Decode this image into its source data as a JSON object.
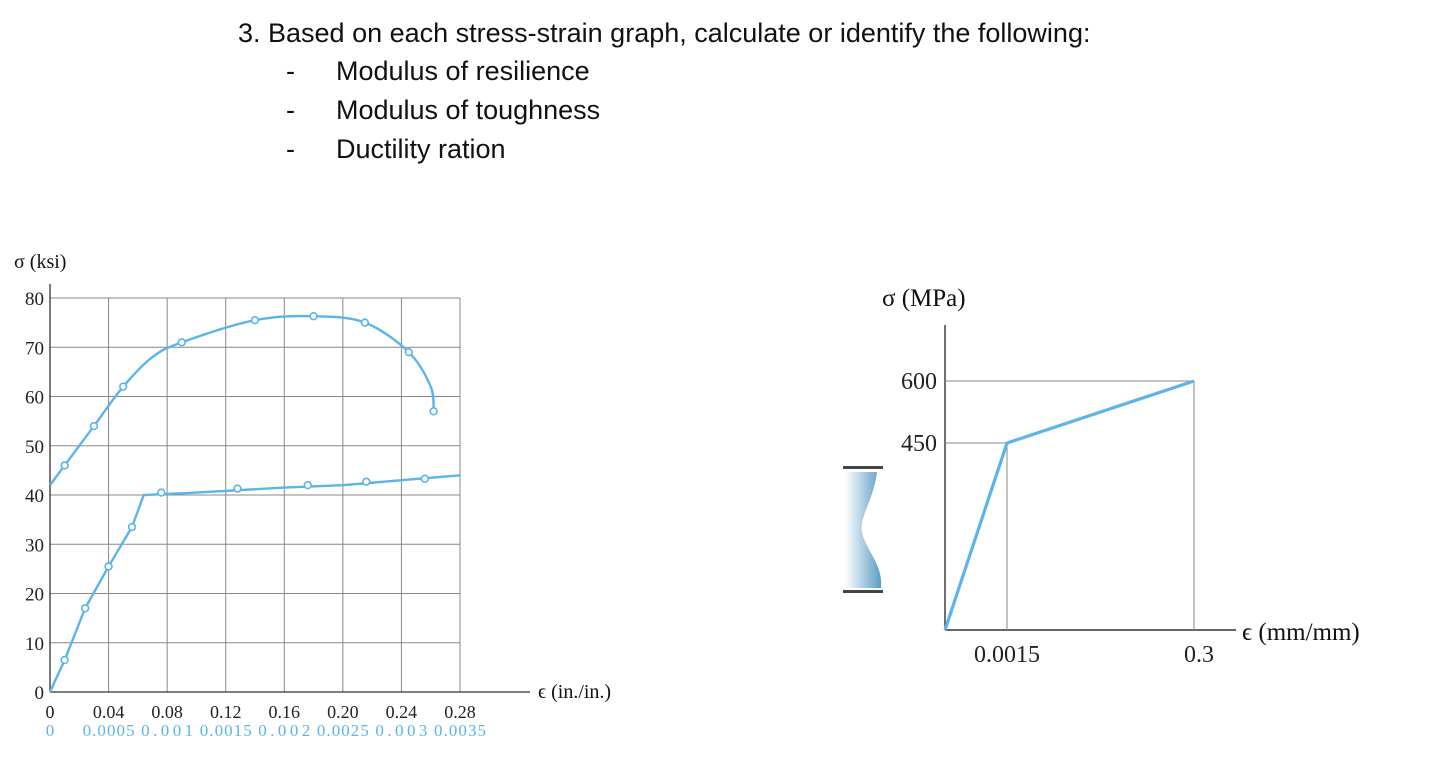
{
  "question": {
    "main": "3.  Based on each stress-strain graph, calculate or identify the following:",
    "bullet": "-",
    "items": [
      "Modulus of resilience",
      "Modulus of toughness",
      "Ductility ration"
    ]
  },
  "colors": {
    "curve": "#5bb4ea",
    "grid": "#888888",
    "text": "#111111",
    "accent_tick": "#5bb4ea"
  },
  "chart_data": [
    {
      "type": "line",
      "ylabel": "σ (ksi)",
      "xlabel": "ϵ (in./in.)",
      "ylim": [
        0,
        80
      ],
      "xlim": [
        0,
        0.28
      ],
      "grid": true,
      "y_ticks": [
        "0",
        "10",
        "20",
        "30",
        "40",
        "50",
        "60",
        "70",
        "80"
      ],
      "x_ticks_upper": [
        "0",
        "0.04",
        "0.08",
        "0.12",
        "0.16",
        "0.20",
        "0.24",
        "0.28"
      ],
      "x_ticks_lower": [
        "0",
        "0.0005",
        "0.001",
        "0.0015",
        "0.002",
        "0.0025",
        "0.003",
        "0.0035"
      ],
      "series": [
        {
          "scale": "upper",
          "x": [
            0,
            0.01,
            0.03,
            0.05,
            0.07,
            0.09,
            0.14,
            0.18,
            0.215,
            0.245,
            0.26,
            0.262
          ],
          "y": [
            42,
            46,
            54,
            62,
            68,
            71,
            75.5,
            76.3,
            75,
            69,
            62,
            57
          ],
          "markers_x": [
            0.01,
            0.03,
            0.05,
            0.09,
            0.14,
            0.18,
            0.215,
            0.245,
            0.262
          ],
          "markers_y": [
            46,
            54,
            62,
            71,
            75.5,
            76.3,
            75,
            69,
            57
          ]
        },
        {
          "scale": "lower",
          "x": [
            0,
            0.000125,
            0.0003,
            0.0005,
            0.0007,
            0.0008,
            0.00125,
            0.002,
            0.0025,
            0.003,
            0.0035
          ],
          "y": [
            0,
            6.5,
            17,
            25.5,
            33.5,
            40,
            40.5,
            41.5,
            42,
            43,
            44
          ],
          "markers_x": [
            0.000125,
            0.0003,
            0.0005,
            0.0007,
            0.00095,
            0.0016,
            0.0022,
            0.0027,
            0.0032
          ],
          "markers_y": [
            6.5,
            17,
            25.5,
            33.5,
            40.5,
            41.3,
            42,
            42.7,
            43.3
          ]
        }
      ]
    },
    {
      "type": "line",
      "ylabel": "σ (MPa)",
      "xlabel": "ϵ (mm/mm)",
      "y_ticks": [
        "450",
        "600"
      ],
      "x_ticks": [
        "0.0015",
        "0.3"
      ],
      "series": [
        {
          "x": [
            "0",
            "0.0015",
            "0.3"
          ],
          "y": [
            0,
            450,
            600
          ]
        }
      ]
    }
  ]
}
